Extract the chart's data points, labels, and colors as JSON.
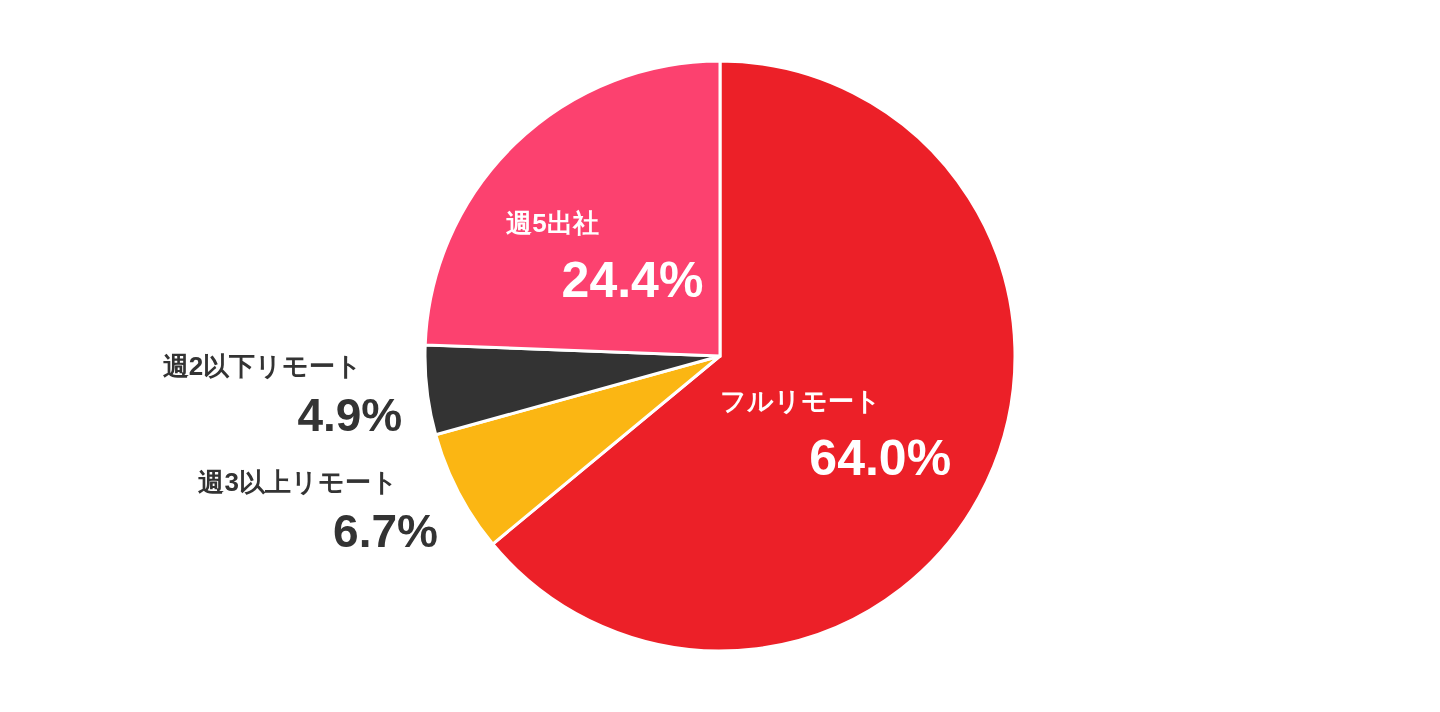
{
  "chart_data": {
    "type": "pie",
    "categories": [
      "フルリモート",
      "週3以上リモート",
      "週2以下リモート",
      "週5出社"
    ],
    "values": [
      64.0,
      6.7,
      4.9,
      24.4
    ],
    "colors": [
      "#ec2028",
      "#fbb613",
      "#333333",
      "#fc416f"
    ],
    "value_labels": [
      "64.0%",
      "6.7%",
      "4.9%",
      "24.4%"
    ]
  }
}
